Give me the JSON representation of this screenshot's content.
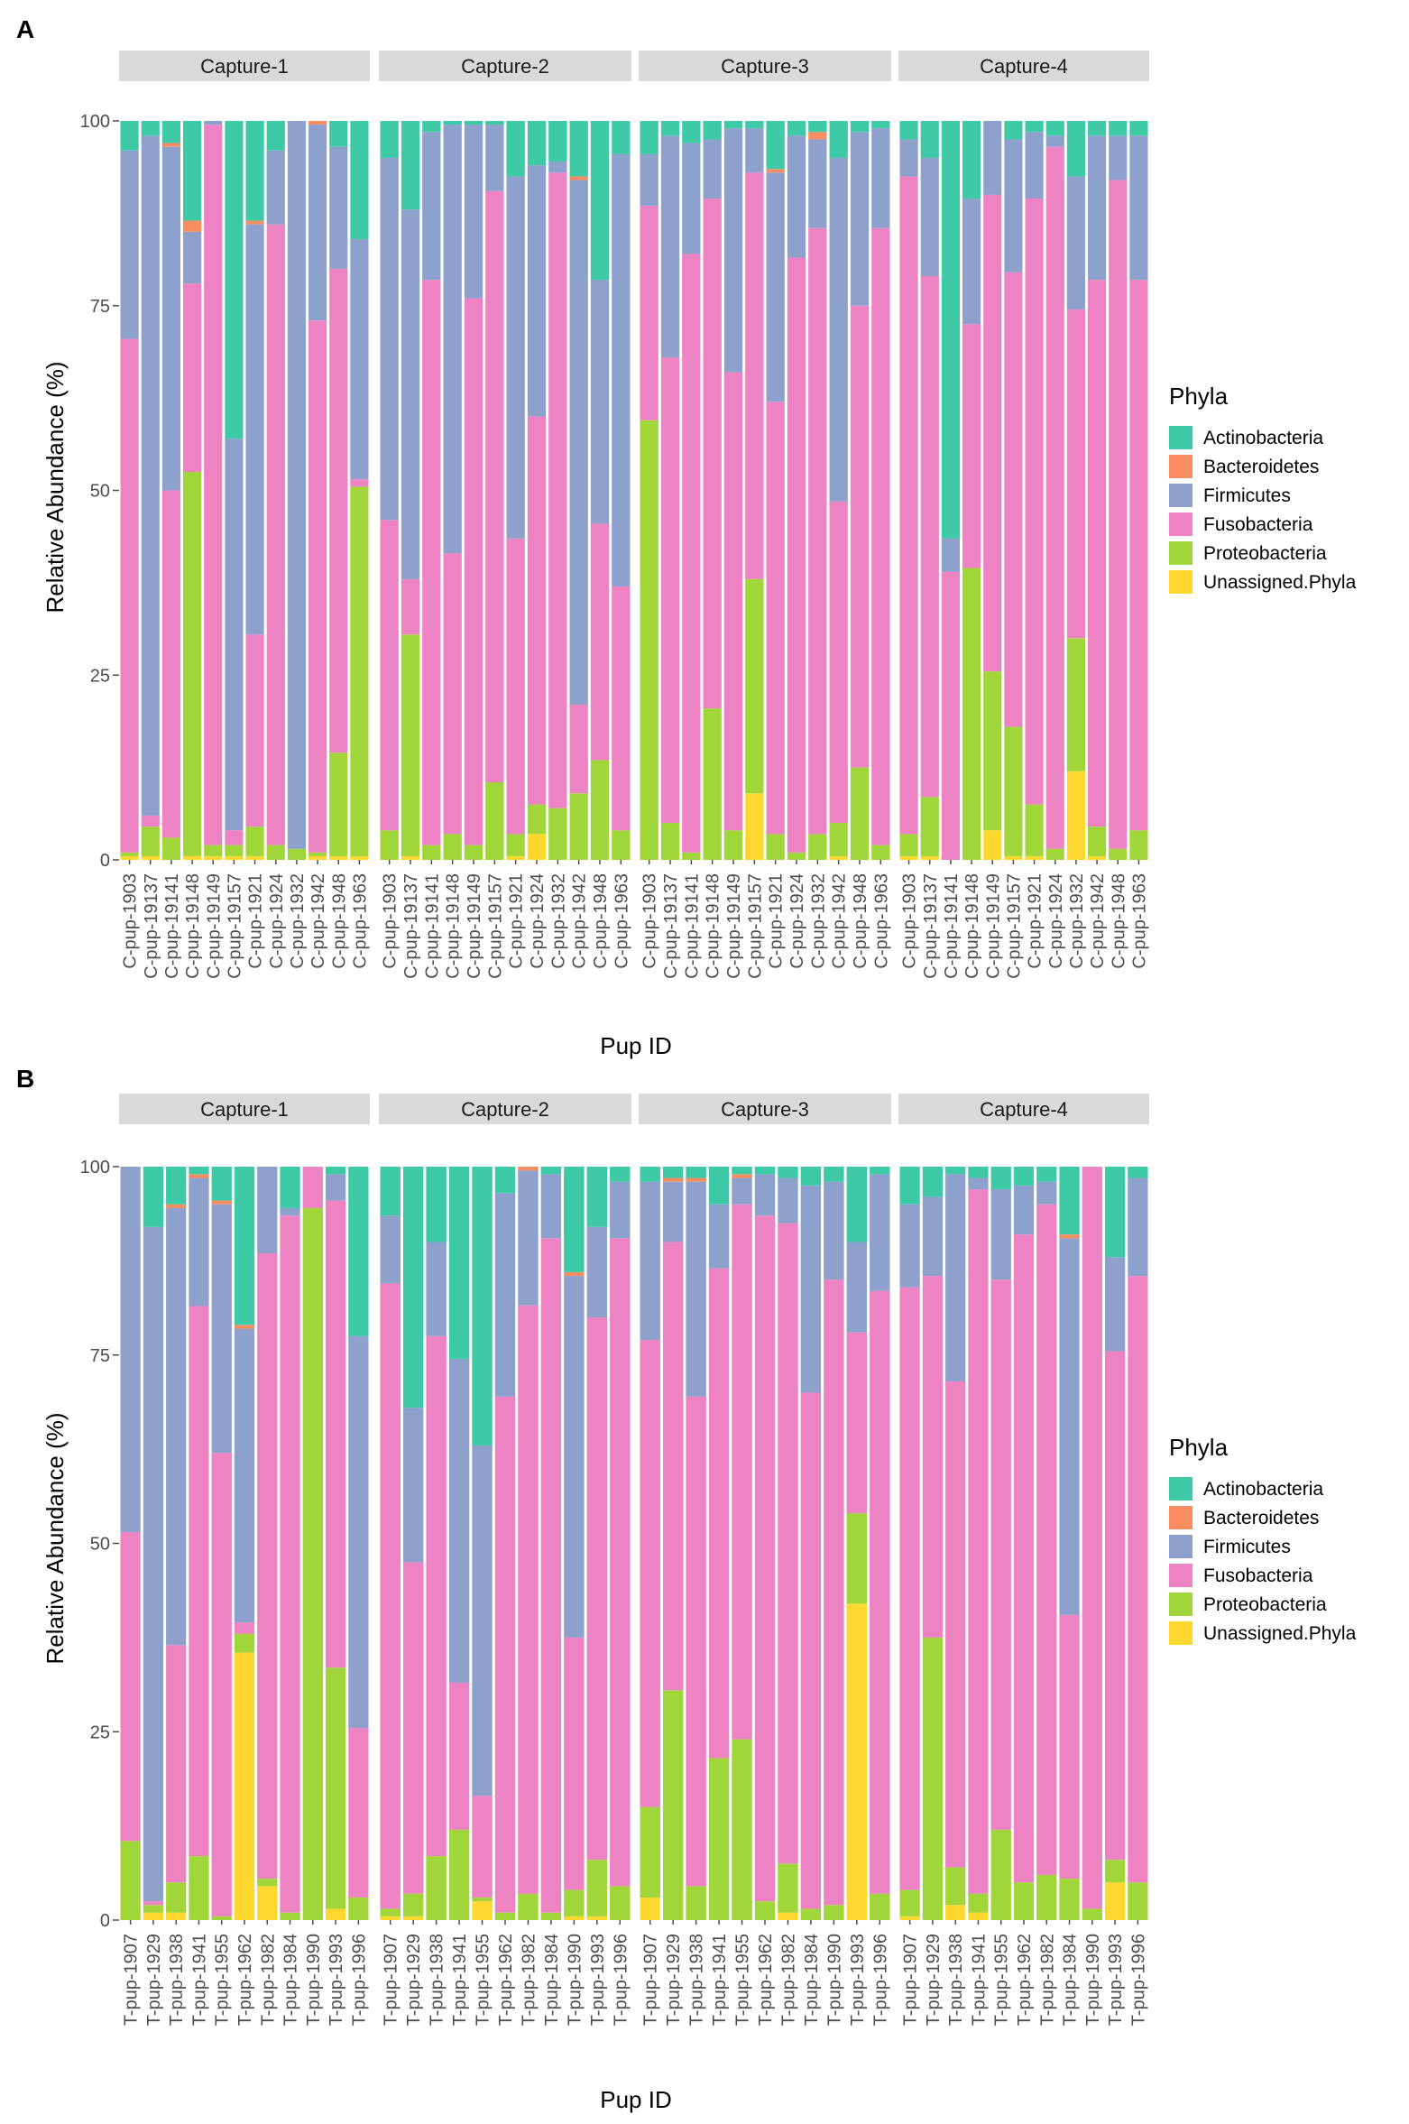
{
  "legend": {
    "title": "Phyla",
    "items": [
      "Actinobacteria",
      "Bacteroidetes",
      "Firmicutes",
      "Fusobacteria",
      "Proteobacteria",
      "Unassigned.Phyla"
    ]
  },
  "colors": {
    "Actinobacteria": "#3ec9a7",
    "Bacteroidetes": "#f88d62",
    "Firmicutes": "#8ea0cc",
    "Fusobacteria": "#ee83c4",
    "Proteobacteria": "#a0d639",
    "Unassigned.Phyla": "#ffd82f"
  },
  "chart_data": [
    {
      "type": "bar",
      "stacked": true,
      "panel": "A",
      "xlabel": "Pup ID",
      "ylabel": "Relative Abundance (%)",
      "ylim": [
        0,
        100
      ],
      "yticks": [
        0,
        25,
        50,
        75,
        100
      ],
      "series_order": [
        "Unassigned.Phyla",
        "Proteobacteria",
        "Fusobacteria",
        "Firmicutes",
        "Bacteroidetes",
        "Actinobacteria"
      ],
      "facets": [
        {
          "label": "Capture-1",
          "categories": [
            "C-pup-1903",
            "C-pup-19137",
            "C-pup-19141",
            "C-pup-19148",
            "C-pup-19149",
            "C-pup-19157",
            "C-pup-1921",
            "C-pup-1924",
            "C-pup-1932",
            "C-pup-1942",
            "C-pup-1948",
            "C-pup-1963"
          ],
          "bars": [
            [
              0.5,
              0.5,
              69.5,
              25.5,
              0,
              4
            ],
            [
              0.5,
              4,
              1.5,
              92,
              0,
              2
            ],
            [
              0,
              3,
              47,
              46.5,
              0.5,
              3
            ],
            [
              0.5,
              52,
              25.5,
              7,
              1.5,
              13.5
            ],
            [
              0.5,
              1.5,
              97.5,
              0.5,
              0,
              0
            ],
            [
              0.5,
              1.5,
              2,
              53,
              0,
              43
            ],
            [
              0.5,
              4,
              26,
              55.5,
              0.5,
              13.5
            ],
            [
              0,
              2,
              84,
              10,
              0,
              4
            ],
            [
              0,
              1.5,
              0,
              98.5,
              0,
              0
            ],
            [
              0.5,
              0.5,
              72,
              26.5,
              0.5,
              0
            ],
            [
              0.5,
              14,
              65.5,
              16.5,
              0,
              3.5
            ],
            [
              0.5,
              50,
              1,
              32.5,
              0,
              16
            ]
          ]
        },
        {
          "label": "Capture-2",
          "categories": [
            "C-pup-1903",
            "C-pup-19137",
            "C-pup-19141",
            "C-pup-19148",
            "C-pup-19149",
            "C-pup-19157",
            "C-pup-1921",
            "C-pup-1924",
            "C-pup-1932",
            "C-pup-1942",
            "C-pup-1948",
            "C-pup-1963"
          ],
          "bars": [
            [
              0,
              4,
              42,
              49,
              0,
              5
            ],
            [
              0.5,
              30,
              7.5,
              50,
              0,
              12
            ],
            [
              0,
              2,
              76.5,
              20,
              0,
              1.5
            ],
            [
              0,
              3.5,
              38,
              58,
              0,
              0.5
            ],
            [
              0,
              2,
              74,
              23.5,
              0,
              0.5
            ],
            [
              0,
              10.5,
              80,
              9,
              0,
              0.5
            ],
            [
              0.5,
              3,
              40,
              49,
              0,
              7.5
            ],
            [
              3.5,
              4,
              52.5,
              34,
              0,
              6
            ],
            [
              0,
              7,
              86,
              1.5,
              0,
              5.5
            ],
            [
              0,
              9,
              12,
              71,
              0.5,
              7.5
            ],
            [
              0,
              13.5,
              32,
              33,
              0,
              21.5
            ],
            [
              0,
              4,
              33,
              58.5,
              0,
              4.5
            ]
          ]
        },
        {
          "label": "Capture-3",
          "categories": [
            "C-pup-1903",
            "C-pup-19137",
            "C-pup-19141",
            "C-pup-19148",
            "C-pup-19149",
            "C-pup-19157",
            "C-pup-1921",
            "C-pup-1924",
            "C-pup-1932",
            "C-pup-1942",
            "C-pup-1948",
            "C-pup-1963"
          ],
          "bars": [
            [
              0,
              59.5,
              29,
              7,
              0,
              4.5
            ],
            [
              0,
              5,
              63,
              30,
              0,
              2
            ],
            [
              0,
              1,
              81,
              15,
              0,
              3
            ],
            [
              0,
              20.5,
              69,
              8,
              0,
              2.5
            ],
            [
              0,
              4,
              62,
              33,
              0,
              1
            ],
            [
              9,
              29,
              55,
              6,
              0,
              1
            ],
            [
              0,
              3.5,
              58.5,
              31,
              0.5,
              6.5
            ],
            [
              0,
              1,
              80.5,
              16.5,
              0,
              2
            ],
            [
              0,
              3.5,
              82,
              12,
              1,
              1.5
            ],
            [
              0.5,
              4.5,
              43.5,
              46.5,
              0,
              5
            ],
            [
              0,
              12.5,
              62.5,
              23.5,
              0,
              1.5
            ],
            [
              0,
              2,
              83.5,
              13.5,
              0,
              1
            ]
          ]
        },
        {
          "label": "Capture-4",
          "categories": [
            "C-pup-1903",
            "C-pup-19137",
            "C-pup-19141",
            "C-pup-19148",
            "C-pup-19149",
            "C-pup-19157",
            "C-pup-1921",
            "C-pup-1924",
            "C-pup-1932",
            "C-pup-1942",
            "C-pup-1948",
            "C-pup-1963"
          ],
          "bars": [
            [
              0.5,
              3,
              89,
              5,
              0,
              2.5
            ],
            [
              0.5,
              8,
              70.5,
              16,
              0,
              5
            ],
            [
              0,
              0,
              39,
              4.5,
              0,
              56.5
            ],
            [
              0,
              39.5,
              33,
              17,
              0,
              10.5
            ],
            [
              4,
              21.5,
              64.5,
              10,
              0,
              0
            ],
            [
              0.5,
              17.5,
              61.5,
              18,
              0,
              2.5
            ],
            [
              0.5,
              7,
              82,
              9,
              0,
              1.5
            ],
            [
              0,
              1.5,
              95,
              1.5,
              0,
              2
            ],
            [
              12,
              18,
              44.5,
              18,
              0,
              7.5
            ],
            [
              0.5,
              4,
              74,
              19.5,
              0,
              2
            ],
            [
              0,
              1.5,
              90.5,
              6,
              0,
              2
            ],
            [
              0,
              4,
              74.5,
              19.5,
              0,
              2
            ]
          ]
        }
      ]
    },
    {
      "type": "bar",
      "stacked": true,
      "panel": "B",
      "xlabel": "Pup ID",
      "ylabel": "Relative Abundance (%)",
      "ylim": [
        0,
        100
      ],
      "yticks": [
        0,
        25,
        50,
        75,
        100
      ],
      "series_order": [
        "Unassigned.Phyla",
        "Proteobacteria",
        "Fusobacteria",
        "Firmicutes",
        "Bacteroidetes",
        "Actinobacteria"
      ],
      "facets": [
        {
          "label": "Capture-1",
          "categories": [
            "T-pup-1907",
            "T-pup-1929",
            "T-pup-1938",
            "T-pup-1941",
            "T-pup-1955",
            "T-pup-1962",
            "T-pup-1982",
            "T-pup-1984",
            "T-pup-1990",
            "T-pup-1993",
            "T-pup-1996"
          ],
          "bars": [
            [
              0,
              10.5,
              41,
              48.5,
              0,
              0
            ],
            [
              1,
              1,
              0.5,
              89.5,
              0,
              8
            ],
            [
              1,
              4,
              31.5,
              58,
              0.5,
              5
            ],
            [
              0,
              8.5,
              73,
              17,
              0.5,
              1
            ],
            [
              0,
              0.5,
              61.5,
              33,
              0.5,
              4.5
            ],
            [
              35.5,
              2.5,
              1.5,
              39,
              0.5,
              21
            ],
            [
              4.5,
              1,
              83,
              11.5,
              0,
              0
            ],
            [
              0,
              1,
              92.5,
              1,
              0,
              5.5
            ],
            [
              0,
              94.5,
              5.5,
              0,
              0,
              0
            ],
            [
              1.5,
              32,
              62,
              3.5,
              0,
              1
            ],
            [
              0,
              3,
              22.5,
              52,
              0,
              22.5
            ]
          ]
        },
        {
          "label": "Capture-2",
          "categories": [
            "T-pup-1907",
            "T-pup-1929",
            "T-pup-1938",
            "T-pup-1941",
            "T-pup-1955",
            "T-pup-1962",
            "T-pup-1982",
            "T-pup-1984",
            "T-pup-1990",
            "T-pup-1993",
            "T-pup-1996"
          ],
          "bars": [
            [
              0.5,
              1,
              83,
              9,
              0,
              6.5
            ],
            [
              0.5,
              3,
              44,
              20.5,
              0,
              32
            ],
            [
              0,
              8.5,
              69,
              12.5,
              0,
              10
            ],
            [
              0,
              12,
              19.5,
              43,
              0,
              25.5
            ],
            [
              2.5,
              0.5,
              13.5,
              46.5,
              0,
              37
            ],
            [
              0,
              1,
              68.5,
              27,
              0,
              3.5
            ],
            [
              0,
              3.5,
              78.5,
              18,
              0.5,
              -0.5
            ],
            [
              0,
              1,
              89.5,
              8.5,
              0,
              1
            ],
            [
              0.5,
              3.5,
              33.5,
              48,
              0.5,
              14
            ],
            [
              0.5,
              7.5,
              72,
              12,
              0,
              8
            ],
            [
              0,
              4.5,
              86,
              7.5,
              0,
              2
            ]
          ]
        },
        {
          "label": "Capture-3",
          "categories": [
            "T-pup-1907",
            "T-pup-1929",
            "T-pup-1938",
            "T-pup-1941",
            "T-pup-1955",
            "T-pup-1962",
            "T-pup-1982",
            "T-pup-1984",
            "T-pup-1990",
            "T-pup-1993",
            "T-pup-1996"
          ],
          "bars": [
            [
              3,
              12,
              62,
              21,
              0,
              2
            ],
            [
              0,
              30.5,
              59.5,
              8,
              0.5,
              1.5
            ],
            [
              0,
              4.5,
              65,
              28.5,
              0.5,
              1.5
            ],
            [
              0,
              21.5,
              65,
              8.5,
              0,
              5
            ],
            [
              0,
              24,
              71,
              3.5,
              0.5,
              1
            ],
            [
              0,
              2.5,
              91,
              5.5,
              0,
              1
            ],
            [
              1,
              6.5,
              85,
              6,
              0,
              1.5
            ],
            [
              0,
              1.5,
              68.5,
              27.5,
              0,
              2.5
            ],
            [
              0,
              2,
              83,
              13,
              0,
              2
            ],
            [
              42,
              12,
              24,
              12,
              0,
              10
            ],
            [
              0,
              3.5,
              80,
              15.5,
              0,
              1
            ]
          ]
        },
        {
          "label": "Capture-4",
          "categories": [
            "T-pup-1907",
            "T-pup-1929",
            "T-pup-1938",
            "T-pup-1941",
            "T-pup-1955",
            "T-pup-1962",
            "T-pup-1982",
            "T-pup-1984",
            "T-pup-1990",
            "T-pup-1993",
            "T-pup-1996"
          ],
          "bars": [
            [
              0.5,
              3.5,
              80,
              11,
              0,
              5
            ],
            [
              0,
              37.5,
              48,
              10.5,
              0,
              4
            ],
            [
              2,
              5,
              64.5,
              27.5,
              0,
              1
            ],
            [
              1,
              2.5,
              93.5,
              1.5,
              0,
              1.5
            ],
            [
              0,
              12,
              73,
              12,
              0,
              3
            ],
            [
              0,
              5,
              86,
              6.5,
              0,
              2.5
            ],
            [
              0,
              6,
              89,
              3,
              0,
              2
            ],
            [
              0,
              5.5,
              35,
              50,
              0.5,
              9
            ],
            [
              0,
              1.5,
              98.5,
              0,
              0,
              0
            ],
            [
              5,
              3,
              67.5,
              12.5,
              0,
              12
            ],
            [
              0,
              5,
              80.5,
              13,
              0,
              1.5
            ]
          ]
        }
      ]
    }
  ]
}
